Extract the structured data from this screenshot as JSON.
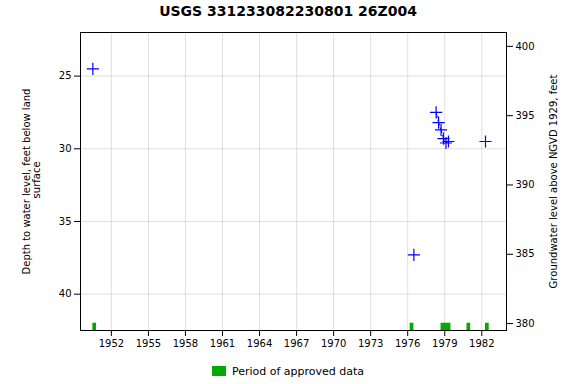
{
  "chart_data": {
    "type": "scatter",
    "title": "USGS 331233082230801 26Z004",
    "ylabel": "Depth to water level, feet below land\n surface",
    "y2label": "Groundwater level above NGVD 1929, feet",
    "xlim": [
      1949.5,
      1984.0
    ],
    "xticks": [
      1952,
      1955,
      1958,
      1961,
      1964,
      1967,
      1970,
      1973,
      1976,
      1979,
      1982
    ],
    "ylim": [
      42.5,
      22.0
    ],
    "yticks": [
      25,
      30,
      35,
      40
    ],
    "y2lim": [
      379.5,
      401.0
    ],
    "y2ticks": [
      380,
      385,
      390,
      395,
      400
    ],
    "grid": true,
    "legend": "bottom",
    "series": [
      {
        "type": "scatter",
        "color": "#0000ff",
        "marker": "+",
        "x": [
          1950.5,
          1982.3,
          1976.5
        ],
        "values": [
          24.5,
          29.5,
          37.3
        ]
      },
      {
        "type": "line",
        "color": "#0000ff",
        "marker": "+",
        "line_style": "dashed",
        "x": [
          1978.3,
          1978.5,
          1978.7,
          1978.9,
          1979.1,
          1979.3
        ],
        "values": [
          27.5,
          28.2,
          28.7,
          29.3,
          29.6,
          29.5
        ]
      },
      {
        "name": "Period of approved data",
        "type": "bar",
        "color": "#00aa00",
        "x": [
          1950.5,
          1976.2,
          1978.7,
          1980.8,
          1982.3
        ],
        "widths": [
          0.3,
          0.3,
          0.8,
          0.3,
          0.3
        ],
        "y": 42.0,
        "height": 0.5
      }
    ]
  }
}
